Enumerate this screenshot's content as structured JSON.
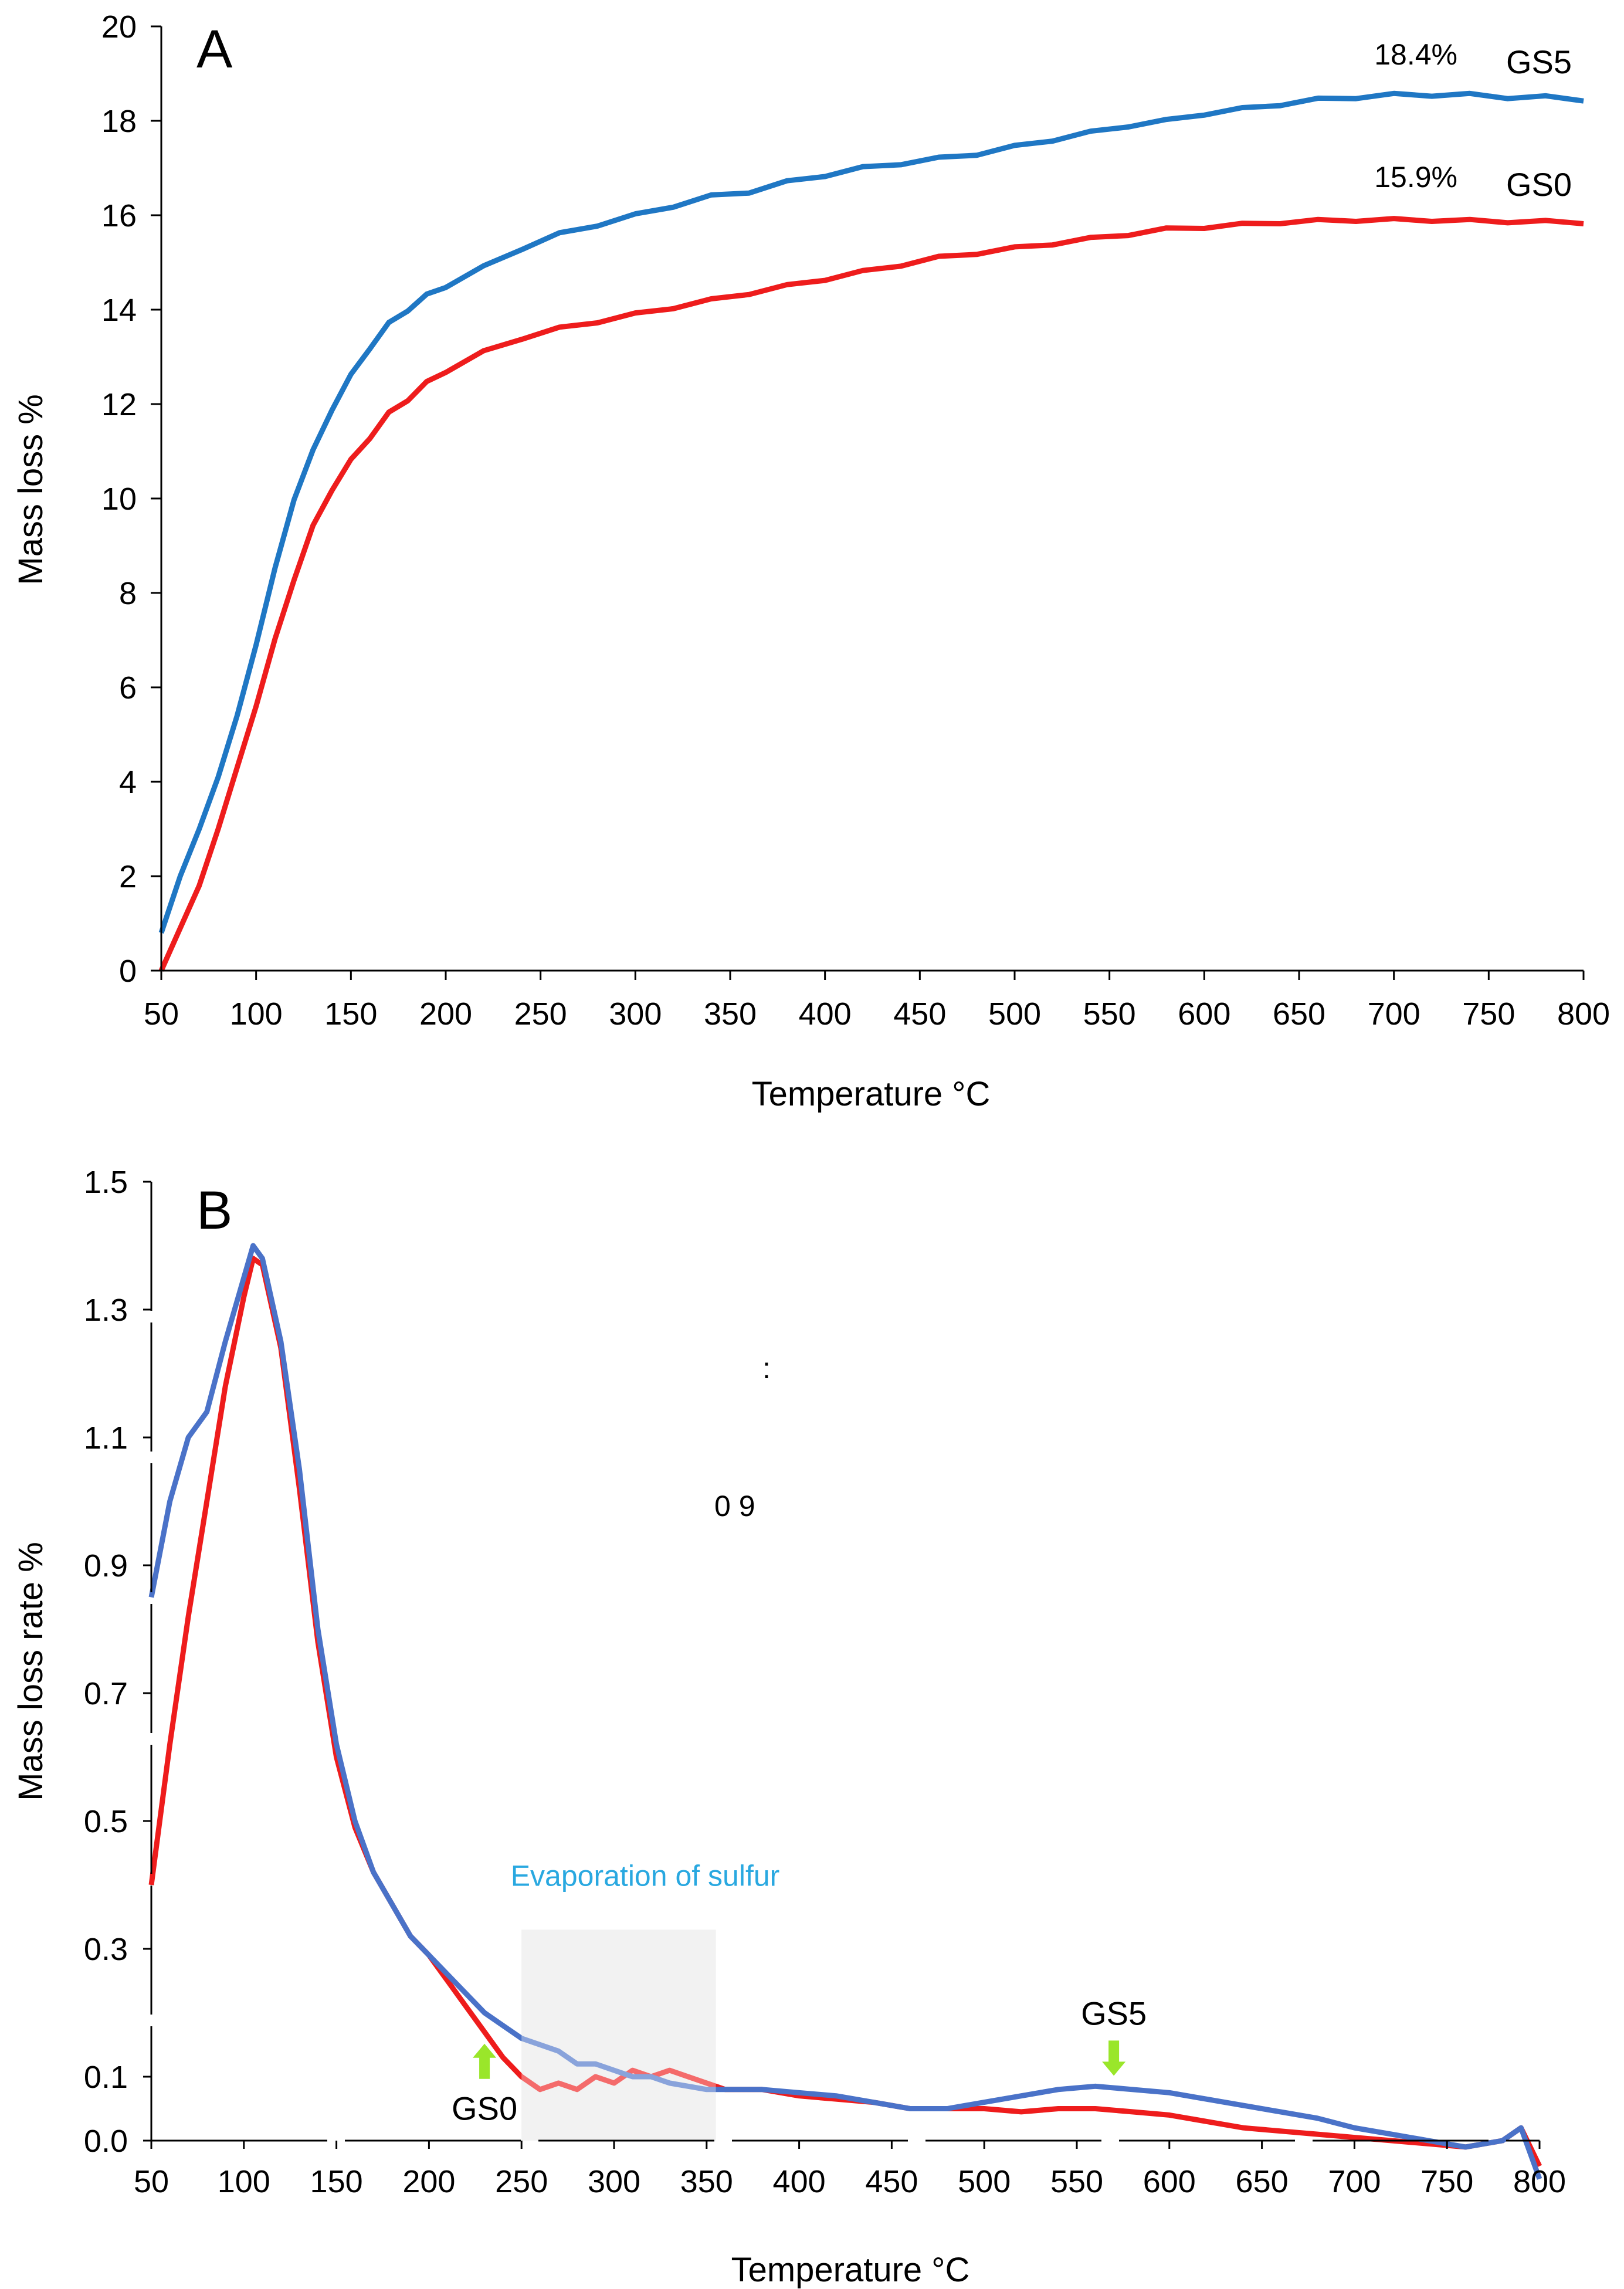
{
  "chart_data": [
    {
      "panel": "A",
      "type": "line",
      "xlabel": "Temperature °C",
      "ylabel": "Mass loss %",
      "xlim": [
        50,
        800
      ],
      "ylim": [
        0,
        20
      ],
      "xticks": [
        50,
        100,
        150,
        200,
        250,
        300,
        350,
        400,
        450,
        500,
        550,
        600,
        650,
        700,
        750,
        800
      ],
      "yticks": [
        0,
        2,
        4,
        6,
        8,
        10,
        12,
        14,
        16,
        18,
        20
      ],
      "colors": {
        "GS5": "#1f77c4",
        "GS0": "#ee1c1c"
      },
      "series": [
        {
          "name": "GS5",
          "final_label": "18.4%",
          "x": [
            50,
            60,
            70,
            80,
            90,
            100,
            110,
            120,
            130,
            140,
            150,
            160,
            170,
            180,
            190,
            200,
            220,
            240,
            260,
            280,
            300,
            320,
            340,
            360,
            380,
            400,
            420,
            440,
            460,
            480,
            500,
            520,
            540,
            560,
            580,
            600,
            620,
            640,
            660,
            680,
            700,
            720,
            740,
            760,
            780,
            800
          ],
          "y": [
            0.8,
            2.0,
            3.0,
            4.1,
            5.4,
            6.9,
            8.5,
            10.0,
            11.0,
            11.9,
            12.6,
            13.2,
            13.7,
            14.0,
            14.3,
            14.5,
            14.9,
            15.3,
            15.6,
            15.8,
            16.0,
            16.2,
            16.4,
            16.5,
            16.7,
            16.85,
            17.0,
            17.1,
            17.2,
            17.3,
            17.45,
            17.6,
            17.75,
            17.9,
            18.0,
            18.15,
            18.25,
            18.35,
            18.45,
            18.5,
            18.55,
            18.55,
            18.55,
            18.5,
            18.5,
            18.45
          ]
        },
        {
          "name": "GS0",
          "final_label": "15.9%",
          "x": [
            50,
            60,
            70,
            80,
            90,
            100,
            110,
            120,
            130,
            140,
            150,
            160,
            170,
            180,
            190,
            200,
            220,
            240,
            260,
            280,
            300,
            320,
            340,
            360,
            380,
            400,
            420,
            440,
            460,
            480,
            500,
            520,
            540,
            560,
            580,
            600,
            620,
            640,
            660,
            680,
            700,
            720,
            740,
            760,
            780,
            800
          ],
          "y": [
            0.0,
            0.9,
            1.8,
            3.0,
            4.3,
            5.6,
            7.0,
            8.3,
            9.4,
            10.2,
            10.8,
            11.3,
            11.8,
            12.1,
            12.45,
            12.7,
            13.1,
            13.4,
            13.6,
            13.75,
            13.9,
            14.05,
            14.2,
            14.35,
            14.5,
            14.65,
            14.8,
            14.95,
            15.1,
            15.2,
            15.3,
            15.4,
            15.5,
            15.6,
            15.7,
            15.75,
            15.8,
            15.85,
            15.88,
            15.9,
            15.9,
            15.9,
            15.88,
            15.87,
            15.86,
            15.85
          ]
        }
      ]
    },
    {
      "panel": "B",
      "type": "line",
      "xlabel": "Temperature °C",
      "ylabel": "Mass loss rate %",
      "xlim": [
        50,
        800
      ],
      "ylim": [
        0,
        1.5
      ],
      "xticks": [
        50,
        100,
        150,
        200,
        250,
        300,
        350,
        400,
        450,
        500,
        550,
        600,
        650,
        700,
        750,
        800
      ],
      "yticks": [
        0.0,
        0.1,
        0.3,
        0.5,
        0.7,
        0.9,
        1.1,
        1.3,
        1.5
      ],
      "ytick_labels": [
        "0.0",
        "0.1",
        "0.3",
        "0.5",
        "0.7",
        "0.9",
        "1.1",
        "1.3",
        "1.5"
      ],
      "colors": {
        "GS5": "#4a72c8",
        "GS0": "#ee1c1c",
        "arrow": "#9ae62a",
        "annotation": "#29a8e0",
        "shade": "#e6e6e6"
      },
      "shaded_region": {
        "x": [
          250,
          355
        ],
        "y": [
          0,
          0.33
        ],
        "label": "Evaporation  of sulfur"
      },
      "stray_text": "0 9",
      "stray_text_2": ":",
      "markers": [
        {
          "label": "GS0",
          "x": 230,
          "direction": "up"
        },
        {
          "label": "GS5",
          "x": 570,
          "direction": "down"
        }
      ],
      "series": [
        {
          "name": "GS5",
          "x": [
            50,
            60,
            70,
            80,
            90,
            100,
            105,
            110,
            120,
            130,
            140,
            150,
            160,
            170,
            180,
            190,
            200,
            210,
            220,
            230,
            240,
            250,
            260,
            270,
            280,
            290,
            300,
            310,
            320,
            330,
            340,
            350,
            360,
            380,
            400,
            420,
            440,
            460,
            480,
            500,
            520,
            540,
            560,
            580,
            600,
            620,
            640,
            660,
            680,
            700,
            720,
            740,
            760,
            780,
            790,
            800
          ],
          "y": [
            0.85,
            1.0,
            1.1,
            1.14,
            1.25,
            1.35,
            1.4,
            1.38,
            1.25,
            1.05,
            0.8,
            0.62,
            0.5,
            0.42,
            0.37,
            0.32,
            0.29,
            0.26,
            0.23,
            0.2,
            0.18,
            0.16,
            0.15,
            0.14,
            0.12,
            0.12,
            0.11,
            0.1,
            0.1,
            0.09,
            0.085,
            0.08,
            0.08,
            0.08,
            0.075,
            0.07,
            0.06,
            0.05,
            0.05,
            0.06,
            0.07,
            0.08,
            0.085,
            0.08,
            0.075,
            0.065,
            0.055,
            0.045,
            0.035,
            0.02,
            0.01,
            0.0,
            -0.01,
            0.0,
            0.02,
            -0.06
          ]
        },
        {
          "name": "GS0",
          "x": [
            50,
            60,
            70,
            80,
            90,
            100,
            105,
            110,
            120,
            130,
            140,
            150,
            160,
            170,
            180,
            190,
            200,
            210,
            220,
            230,
            240,
            250,
            260,
            270,
            280,
            290,
            300,
            310,
            320,
            330,
            340,
            350,
            360,
            380,
            400,
            420,
            440,
            460,
            480,
            500,
            520,
            540,
            560,
            580,
            600,
            620,
            640,
            660,
            680,
            700,
            720,
            740,
            760,
            780,
            790,
            800
          ],
          "y": [
            0.4,
            0.62,
            0.82,
            1.0,
            1.18,
            1.32,
            1.38,
            1.37,
            1.24,
            1.02,
            0.78,
            0.6,
            0.49,
            0.42,
            0.37,
            0.32,
            0.29,
            0.25,
            0.21,
            0.17,
            0.13,
            0.1,
            0.08,
            0.09,
            0.08,
            0.1,
            0.09,
            0.11,
            0.1,
            0.11,
            0.1,
            0.09,
            0.08,
            0.08,
            0.07,
            0.065,
            0.06,
            0.05,
            0.05,
            0.05,
            0.045,
            0.05,
            0.05,
            0.045,
            0.04,
            0.03,
            0.02,
            0.015,
            0.01,
            0.005,
            0.0,
            -0.005,
            -0.01,
            0.0,
            0.02,
            -0.04
          ]
        }
      ]
    }
  ]
}
